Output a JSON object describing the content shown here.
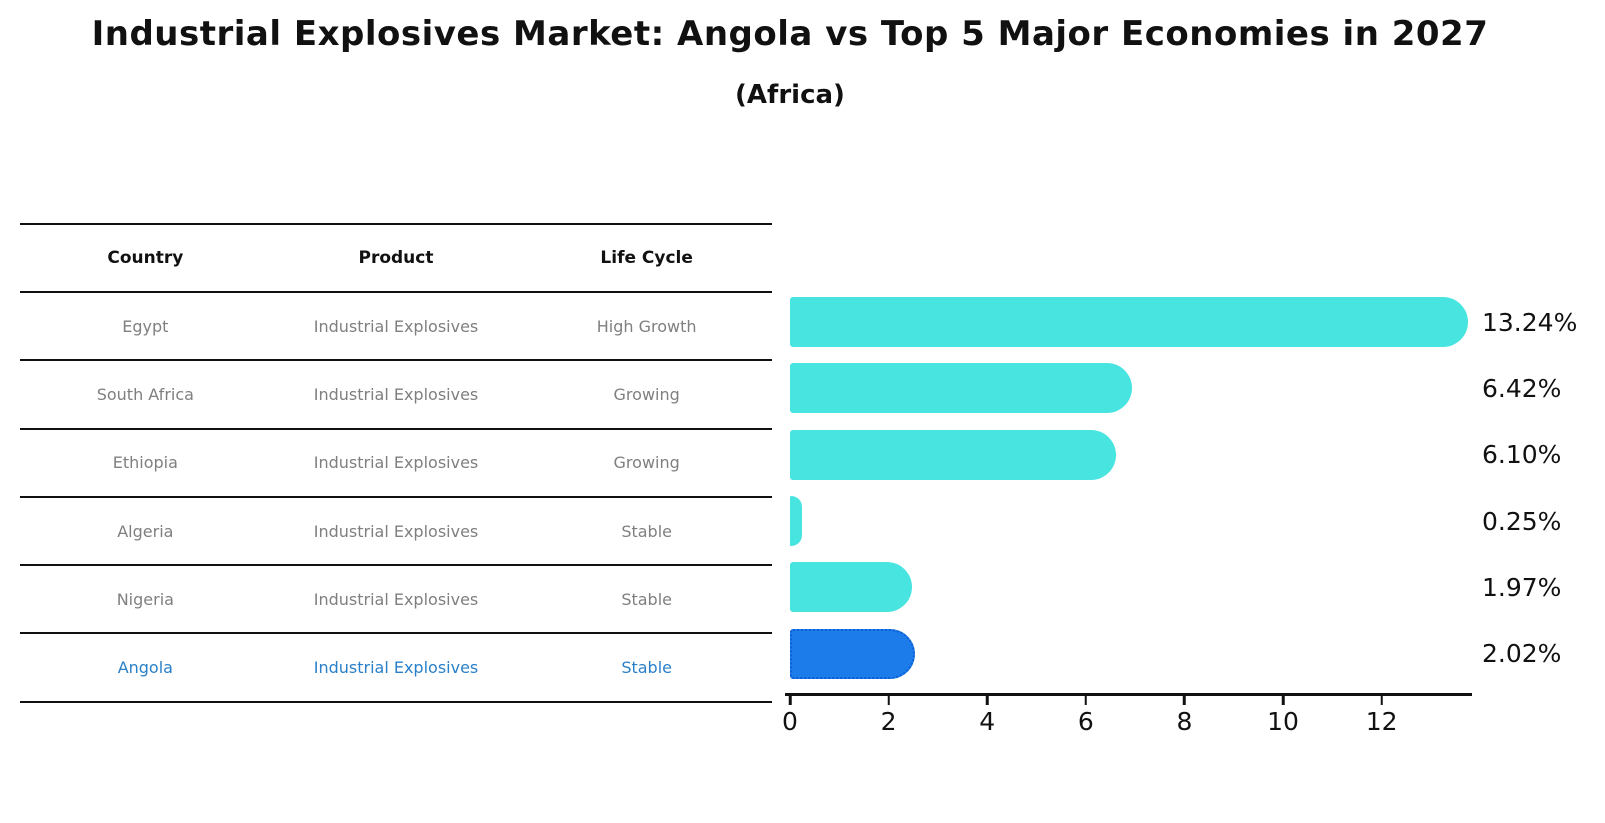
{
  "title": "Industrial Explosives Market: Angola vs Top 5 Major Economies in 2027",
  "subtitle": "(Africa)",
  "table": {
    "headers": [
      "Country",
      "Product",
      "Life Cycle"
    ],
    "rows": [
      {
        "country": "Egypt",
        "product": "Industrial Explosives",
        "life_cycle": "High Growth",
        "highlight": false
      },
      {
        "country": "South Africa",
        "product": "Industrial Explosives",
        "life_cycle": "Growing",
        "highlight": false
      },
      {
        "country": "Ethiopia",
        "product": "Industrial Explosives",
        "life_cycle": "Growing",
        "highlight": false
      },
      {
        "country": "Algeria",
        "product": "Industrial Explosives",
        "life_cycle": "Stable",
        "highlight": false
      },
      {
        "country": "Nigeria",
        "product": "Industrial Explosives",
        "life_cycle": "Stable",
        "highlight": false
      },
      {
        "country": "Angola",
        "product": "Industrial Explosives",
        "life_cycle": "Stable",
        "highlight": true
      }
    ]
  },
  "chart_data": {
    "type": "bar",
    "orientation": "horizontal",
    "categories": [
      "Egypt",
      "South Africa",
      "Ethiopia",
      "Algeria",
      "Nigeria",
      "Angola"
    ],
    "values": [
      13.24,
      6.42,
      6.1,
      0.25,
      1.97,
      2.02
    ],
    "value_labels": [
      "13.24%",
      "6.42%",
      "6.10%",
      "0.25%",
      "1.97%",
      "2.02%"
    ],
    "highlight_index": 5,
    "xticks": [
      0,
      2,
      4,
      6,
      8,
      10,
      12
    ],
    "xlim": [
      0,
      13.6
    ],
    "grid": "off",
    "legend": "none"
  },
  "colors": {
    "bar_default": "#47E4E0",
    "bar_highlight": "#1C7CEA",
    "bar_highlight_border": "#0B5FD6",
    "row_text": "#7f7f7f",
    "highlight_text": "#2A80C8",
    "label_text": "#111111"
  }
}
